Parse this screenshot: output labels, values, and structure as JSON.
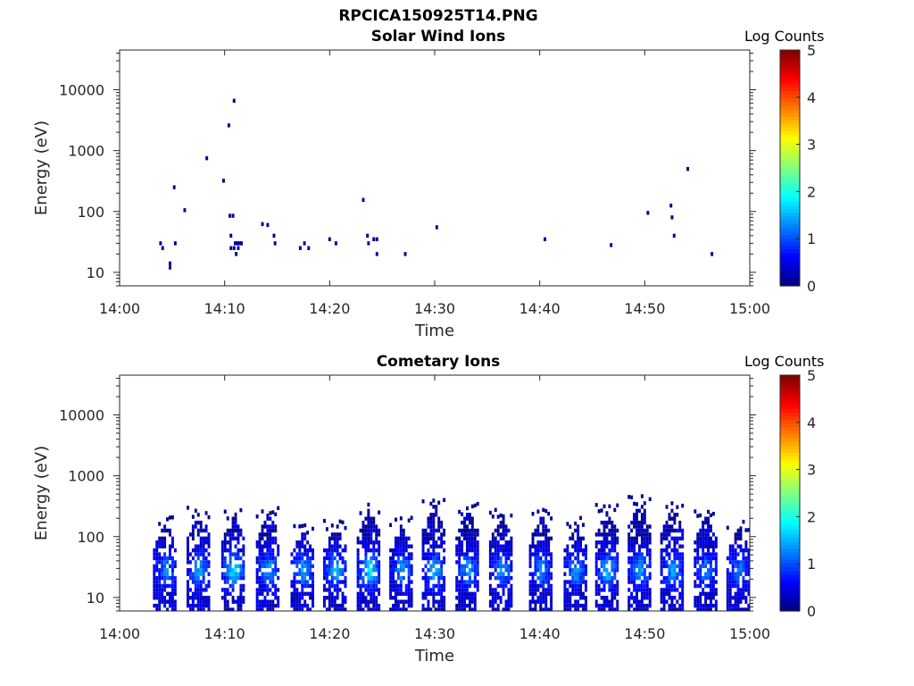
{
  "figure": {
    "title": "RPCICA150925T14.PNG"
  },
  "colors": {
    "colormap": "jet",
    "dark_blue": "#000080",
    "blue": "#0000ff",
    "cyan": "#00ffff",
    "axis": "#262626"
  },
  "chart_data": [
    {
      "type": "heatmap",
      "title": "Solar Wind Ions",
      "xlabel": "Time",
      "ylabel": "Energy (eV)",
      "yscale": "log",
      "xticks": [
        "14:00",
        "14:10",
        "14:20",
        "14:30",
        "14:40",
        "14:50",
        "15:00"
      ],
      "xlim_minutes": [
        0,
        60
      ],
      "yticks": [
        "10",
        "100",
        "1000",
        "10000"
      ],
      "yticks_values": [
        10,
        100,
        1000,
        10000
      ],
      "ylim": [
        6,
        45000
      ],
      "colorbar": {
        "label": "Log Counts",
        "ticks": [
          "0",
          "1",
          "2",
          "3",
          "4",
          "5"
        ],
        "range": [
          0,
          5
        ]
      },
      "cells": [
        {
          "t": 3.9,
          "e": 30,
          "v": 0.1
        },
        {
          "t": 4.1,
          "e": 25,
          "v": 0.1
        },
        {
          "t": 4.8,
          "e": 14,
          "v": 0.1
        },
        {
          "t": 4.8,
          "e": 12,
          "v": 0.1
        },
        {
          "t": 5.2,
          "e": 250,
          "v": 0.1
        },
        {
          "t": 5.3,
          "e": 30,
          "v": 0.1
        },
        {
          "t": 6.2,
          "e": 105,
          "v": 0.1
        },
        {
          "t": 8.3,
          "e": 750,
          "v": 0.1
        },
        {
          "t": 9.9,
          "e": 320,
          "v": 0.1
        },
        {
          "t": 10.4,
          "e": 2600,
          "v": 0.1
        },
        {
          "t": 10.9,
          "e": 6600,
          "v": 0.1
        },
        {
          "t": 10.5,
          "e": 85,
          "v": 0.1
        },
        {
          "t": 10.8,
          "e": 85,
          "v": 0.1
        },
        {
          "t": 10.6,
          "e": 40,
          "v": 0.1
        },
        {
          "t": 10.6,
          "e": 25,
          "v": 0.1
        },
        {
          "t": 10.9,
          "e": 25,
          "v": 0.1
        },
        {
          "t": 11.0,
          "e": 30,
          "v": 0.1
        },
        {
          "t": 11.2,
          "e": 30,
          "v": 0.1
        },
        {
          "t": 11.4,
          "e": 30,
          "v": 0.1
        },
        {
          "t": 11.6,
          "e": 30,
          "v": 0.1
        },
        {
          "t": 11.1,
          "e": 20,
          "v": 0.1
        },
        {
          "t": 11.3,
          "e": 25,
          "v": 0.1
        },
        {
          "t": 13.6,
          "e": 62,
          "v": 0.1
        },
        {
          "t": 14.1,
          "e": 60,
          "v": 0.1
        },
        {
          "t": 14.7,
          "e": 40,
          "v": 0.1
        },
        {
          "t": 14.8,
          "e": 30,
          "v": 0.1
        },
        {
          "t": 17.2,
          "e": 25,
          "v": 0.1
        },
        {
          "t": 17.6,
          "e": 30,
          "v": 0.1
        },
        {
          "t": 18.0,
          "e": 25,
          "v": 0.1
        },
        {
          "t": 20.0,
          "e": 35,
          "v": 0.1
        },
        {
          "t": 20.6,
          "e": 30,
          "v": 0.1
        },
        {
          "t": 23.2,
          "e": 155,
          "v": 0.1
        },
        {
          "t": 23.6,
          "e": 40,
          "v": 0.1
        },
        {
          "t": 23.7,
          "e": 30,
          "v": 0.1
        },
        {
          "t": 24.2,
          "e": 35,
          "v": 0.1
        },
        {
          "t": 24.5,
          "e": 35,
          "v": 0.1
        },
        {
          "t": 24.5,
          "e": 20,
          "v": 0.1
        },
        {
          "t": 27.2,
          "e": 20,
          "v": 0.1
        },
        {
          "t": 30.2,
          "e": 55,
          "v": 0.1
        },
        {
          "t": 40.5,
          "e": 35,
          "v": 0.1
        },
        {
          "t": 46.8,
          "e": 28,
          "v": 0.1
        },
        {
          "t": 50.3,
          "e": 95,
          "v": 0.1
        },
        {
          "t": 52.5,
          "e": 125,
          "v": 0.1
        },
        {
          "t": 52.6,
          "e": 80,
          "v": 0.1
        },
        {
          "t": 52.8,
          "e": 40,
          "v": 0.1
        },
        {
          "t": 54.1,
          "e": 500,
          "v": 0.1
        },
        {
          "t": 56.4,
          "e": 20,
          "v": 0.1
        }
      ]
    },
    {
      "type": "heatmap",
      "title": "Cometary Ions",
      "xlabel": "Time",
      "ylabel": "Energy (eV)",
      "yscale": "log",
      "xticks": [
        "14:00",
        "14:10",
        "14:20",
        "14:30",
        "14:40",
        "14:50",
        "15:00"
      ],
      "xlim_minutes": [
        0,
        60
      ],
      "yticks": [
        "10",
        "100",
        "1000",
        "10000"
      ],
      "yticks_values": [
        10,
        100,
        1000,
        10000
      ],
      "ylim": [
        6,
        45000
      ],
      "colorbar": {
        "label": "Log Counts",
        "ticks": [
          "0",
          "1",
          "2",
          "3",
          "4",
          "5"
        ],
        "range": [
          0,
          5
        ]
      },
      "bursts": [
        {
          "t": 4.4,
          "emax": 180,
          "peak": 1.1
        },
        {
          "t": 7.6,
          "emax": 260,
          "peak": 1.3
        },
        {
          "t": 10.9,
          "emax": 230,
          "peak": 1.7
        },
        {
          "t": 14.2,
          "emax": 260,
          "peak": 1.3
        },
        {
          "t": 17.5,
          "emax": 140,
          "peak": 1.3
        },
        {
          "t": 20.6,
          "emax": 160,
          "peak": 1.4
        },
        {
          "t": 23.8,
          "emax": 300,
          "peak": 1.7
        },
        {
          "t": 26.9,
          "emax": 170,
          "peak": 1.3
        },
        {
          "t": 30.0,
          "emax": 360,
          "peak": 1.4
        },
        {
          "t": 33.2,
          "emax": 290,
          "peak": 1.3
        },
        {
          "t": 36.4,
          "emax": 230,
          "peak": 1.2
        },
        {
          "t": 40.2,
          "emax": 230,
          "peak": 1.2
        },
        {
          "t": 43.5,
          "emax": 170,
          "peak": 1.2
        },
        {
          "t": 46.5,
          "emax": 290,
          "peak": 1.5
        },
        {
          "t": 49.6,
          "emax": 400,
          "peak": 1.3
        },
        {
          "t": 52.7,
          "emax": 330,
          "peak": 1.3
        },
        {
          "t": 55.9,
          "emax": 240,
          "peak": 1.2
        },
        {
          "t": 59.0,
          "emax": 150,
          "peak": 1.1
        }
      ]
    }
  ]
}
